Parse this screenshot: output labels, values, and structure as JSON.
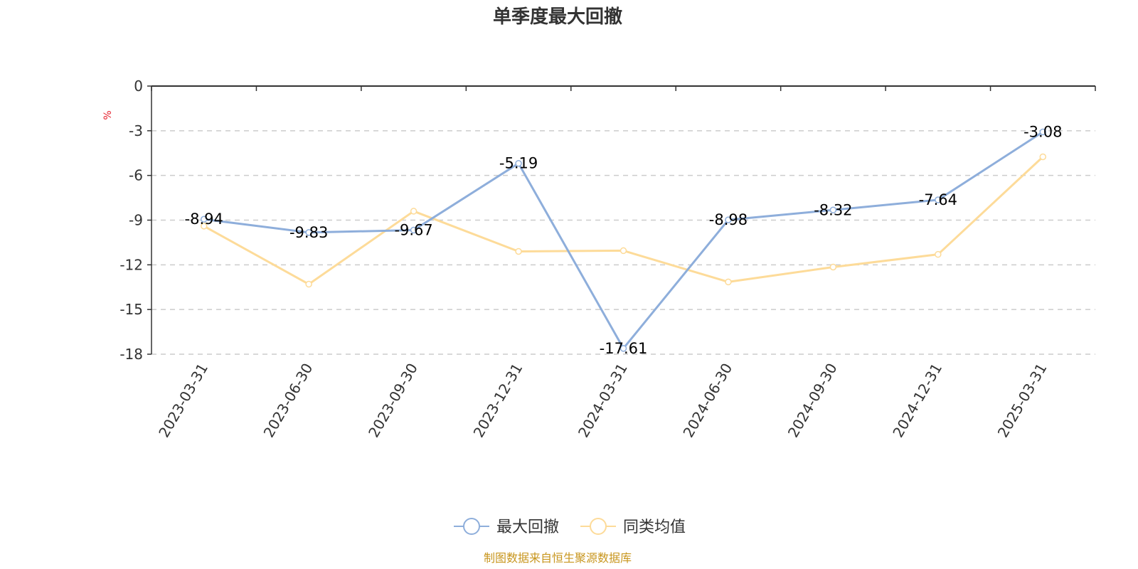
{
  "chart_data": {
    "type": "line",
    "title": "单季度最大回撤",
    "ylabel": "%",
    "categories": [
      "2023-03-31",
      "2023-06-30",
      "2023-09-30",
      "2023-12-31",
      "2024-03-31",
      "2024-06-30",
      "2024-09-30",
      "2024-12-31",
      "2025-03-31"
    ],
    "yticks": [
      "0",
      "-3",
      "-6",
      "-9",
      "-12",
      "-15",
      "-18"
    ],
    "ylim": [
      -18,
      0
    ],
    "grid": true,
    "legend_position": "bottom",
    "series": [
      {
        "name": "最大回撤",
        "values": [
          -8.94,
          -9.83,
          -9.67,
          -5.19,
          -17.61,
          -8.98,
          -8.32,
          -7.64,
          -3.08
        ],
        "labels": [
          "-8.94",
          "-9.83",
          "-9.67",
          "-5.19",
          "-17.61",
          "-8.98",
          "-8.32",
          "-7.64",
          "-3.08"
        ],
        "color": "#8eaedb"
      },
      {
        "name": "同类均值",
        "values": [
          -9.4,
          -13.3,
          -8.4,
          -11.1,
          -11.05,
          -13.15,
          -12.15,
          -11.3,
          -4.75
        ],
        "color": "#fddb99"
      }
    ]
  },
  "source": "制图数据来自恒生聚源数据库"
}
